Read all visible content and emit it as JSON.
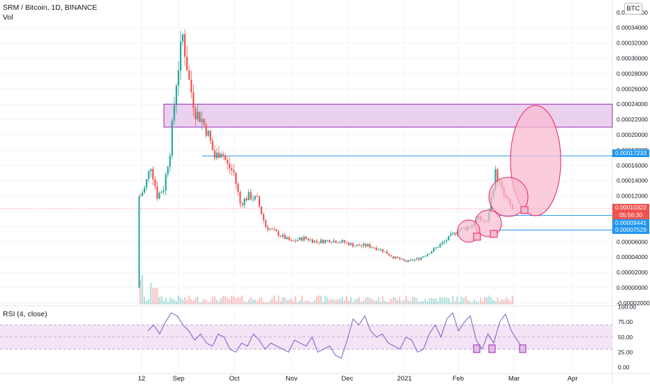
{
  "header": {
    "title": "SRM / Bitcoin, 1D, BINANCE",
    "volume_label": "Vol",
    "currency_badge": "BTC",
    "rsi_label": "RSI (4, close)"
  },
  "price_tags": {
    "resistance": "0.00017233",
    "current_price": "0.00010322",
    "countdown": "05:56:30",
    "support_1": "0.00009441",
    "support_2": "0.00007529"
  },
  "colors": {
    "up": "#26a69a",
    "down": "#ef5350",
    "zone_fill": "#e1bee7",
    "zone_border": "#9c27b0",
    "circle_fill": "#f8bbd0",
    "circle_border": "#e91e63",
    "hline": "#2196f3",
    "rsi_line": "#7e57c2",
    "rsi_band": "#f3e5f5"
  },
  "chart_data": [
    {
      "type": "candlestick",
      "title": "SRM / Bitcoin, 1D, BINANCE",
      "xlabel": "",
      "ylabel": "",
      "x_ticks": [
        "12",
        "Sep",
        "Oct",
        "Nov",
        "Dec",
        "2021",
        "Feb",
        "Mar",
        "Apr"
      ],
      "y_ticks": [
        "0.00034000",
        "0.00032000",
        "0.00030000",
        "0.00028000",
        "0.00026000",
        "0.00024000",
        "0.00022000",
        "0.00020000",
        "0.00018000",
        "0.00016000",
        "0.00014000",
        "0.00012000",
        "0.00010000",
        "0.00008000",
        "0.00006000",
        "0.00004000",
        "0.00002000",
        "0.00000000",
        "-0.00002000"
      ],
      "y_ticks_top": [
        "0.00036000"
      ],
      "ylim": [
        -2e-05,
        0.00037
      ],
      "price_path": [
        [
          0,
          0.0
        ],
        [
          1,
          0.00012
        ],
        [
          3,
          0.00013
        ],
        [
          6,
          0.00016
        ],
        [
          9,
          0.00012
        ],
        [
          12,
          0.00013
        ],
        [
          15,
          0.00018
        ],
        [
          18,
          0.00027
        ],
        [
          21,
          0.00033
        ],
        [
          24,
          0.00027
        ],
        [
          27,
          0.00023
        ],
        [
          30,
          0.00022
        ],
        [
          33,
          0.0002
        ],
        [
          36,
          0.00017
        ],
        [
          39,
          0.00018
        ],
        [
          42,
          0.00016
        ],
        [
          45,
          0.00015
        ],
        [
          48,
          0.00011
        ],
        [
          52,
          0.00012
        ],
        [
          56,
          0.000115
        ],
        [
          60,
          8e-05
        ],
        [
          66,
          7e-05
        ],
        [
          72,
          6e-05
        ],
        [
          78,
          6.5e-05
        ],
        [
          84,
          6e-05
        ],
        [
          90,
          6.2e-05
        ],
        [
          96,
          6e-05
        ],
        [
          102,
          5.5e-05
        ],
        [
          108,
          5.5e-05
        ],
        [
          114,
          5e-05
        ],
        [
          120,
          4e-05
        ],
        [
          126,
          3.4e-05
        ],
        [
          132,
          3.8e-05
        ],
        [
          138,
          4.8e-05
        ],
        [
          144,
          6e-05
        ],
        [
          150,
          7.5e-05
        ],
        [
          156,
          8e-05
        ],
        [
          160,
          9e-05
        ],
        [
          164,
          8.5e-05
        ],
        [
          168,
          0.00015
        ],
        [
          172,
          0.00012
        ],
        [
          176,
          0.00010322
        ]
      ],
      "annotations": {
        "resistance_zone": [
          0.00021,
          0.00024
        ],
        "horizontal_levels": [
          0.00017233,
          9.441e-05,
          7.529e-05
        ],
        "current_price": 0.00010322
      },
      "volume_panel": true
    },
    {
      "type": "line",
      "title": "RSI (4, close)",
      "y_ticks": [
        "100.00",
        "75.00",
        "50.00",
        "25.00",
        "0.00"
      ],
      "ylim": [
        0,
        100
      ],
      "band": [
        30,
        70
      ],
      "x_ticks": [
        "12",
        "Sep",
        "Oct",
        "Nov",
        "Dec",
        "2021",
        "Feb",
        "Mar",
        "Apr"
      ],
      "values": [
        60,
        70,
        55,
        75,
        90,
        85,
        70,
        60,
        45,
        55,
        40,
        35,
        55,
        50,
        30,
        25,
        40,
        35,
        55,
        45,
        30,
        40,
        35,
        30,
        25,
        45,
        40,
        35,
        50,
        25,
        30,
        35,
        20,
        15,
        45,
        80,
        70,
        85,
        60,
        50,
        55,
        40,
        35,
        30,
        50,
        45,
        25,
        30,
        55,
        70,
        50,
        80,
        90,
        60,
        75,
        85,
        45,
        30,
        55,
        40,
        75,
        88,
        60,
        45,
        30
      ]
    }
  ]
}
